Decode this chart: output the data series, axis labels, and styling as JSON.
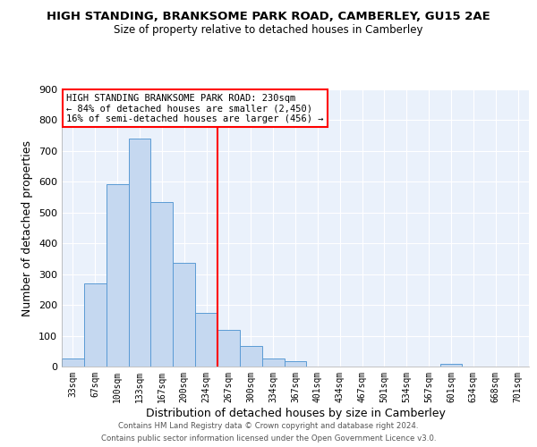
{
  "title": "HIGH STANDING, BRANKSOME PARK ROAD, CAMBERLEY, GU15 2AE",
  "subtitle": "Size of property relative to detached houses in Camberley",
  "xlabel": "Distribution of detached houses by size in Camberley",
  "ylabel": "Number of detached properties",
  "bar_labels": [
    "33sqm",
    "67sqm",
    "100sqm",
    "133sqm",
    "167sqm",
    "200sqm",
    "234sqm",
    "267sqm",
    "300sqm",
    "334sqm",
    "367sqm",
    "401sqm",
    "434sqm",
    "467sqm",
    "501sqm",
    "534sqm",
    "567sqm",
    "601sqm",
    "634sqm",
    "668sqm",
    "701sqm"
  ],
  "bar_heights": [
    27,
    270,
    593,
    740,
    535,
    338,
    175,
    120,
    67,
    26,
    17,
    0,
    0,
    0,
    0,
    0,
    0,
    8,
    0,
    0,
    0
  ],
  "bar_color": "#c5d8f0",
  "bar_edge_color": "#5b9bd5",
  "vline_x": 6.5,
  "vline_color": "red",
  "annotation_title": "HIGH STANDING BRANKSOME PARK ROAD: 230sqm",
  "annotation_line1": "← 84% of detached houses are smaller (2,450)",
  "annotation_line2": "16% of semi-detached houses are larger (456) →",
  "annotation_box_color": "white",
  "annotation_box_edge_color": "red",
  "ylim": [
    0,
    900
  ],
  "yticks": [
    0,
    100,
    200,
    300,
    400,
    500,
    600,
    700,
    800,
    900
  ],
  "bg_color": "#eaf1fb",
  "grid_color": "white",
  "footer1": "Contains HM Land Registry data © Crown copyright and database right 2024.",
  "footer2": "Contains public sector information licensed under the Open Government Licence v3.0."
}
